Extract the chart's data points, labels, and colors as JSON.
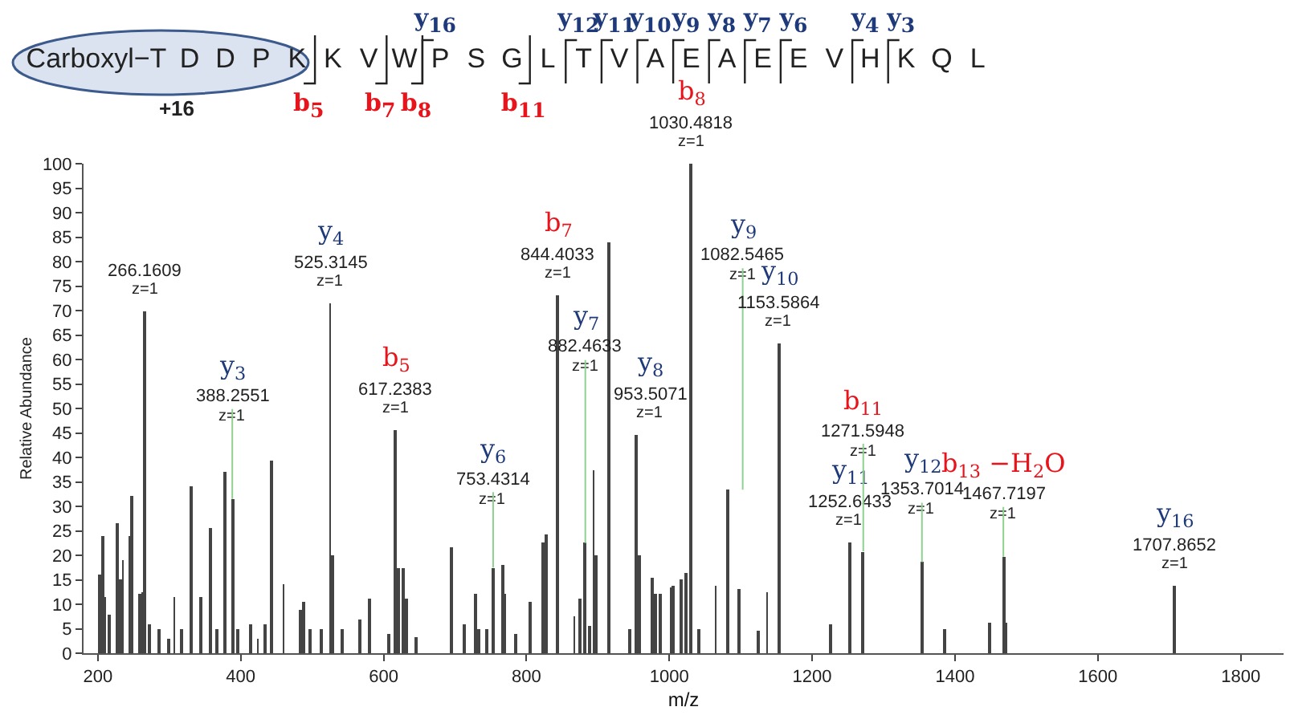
{
  "chart_data": {
    "type": "bar",
    "xlabel": "m/z",
    "ylabel": "Relative Abundance",
    "x": [
      202,
      206,
      209,
      216,
      228,
      232,
      235,
      244,
      247,
      259,
      262.5,
      266.1609,
      272,
      286,
      300,
      307,
      317,
      331,
      344,
      357,
      367,
      377,
      388.2551,
      395,
      414,
      424,
      435,
      443,
      460,
      483,
      489,
      497,
      512,
      525.3145,
      528.5,
      542,
      567,
      580,
      608,
      617.2383,
      620,
      627,
      632,
      645,
      696,
      713,
      729,
      733,
      745,
      753.4314,
      767,
      770,
      784,
      806,
      824,
      828,
      844.4033,
      867,
      874,
      882.4633,
      888,
      894,
      898,
      915,
      944,
      953.5071,
      958,
      976,
      981,
      987,
      1002,
      1006,
      1016,
      1023,
      1030.4818,
      1041,
      1065,
      1082.5465,
      1097,
      1124,
      1137,
      1153.5864,
      1225,
      1252.6433,
      1271.5948,
      1353.7014,
      1385,
      1449,
      1467.7197,
      1471,
      1707.8652
    ],
    "values": [
      16,
      24,
      11.5,
      8,
      26.5,
      15,
      19,
      23.8,
      32,
      12,
      12.5,
      70,
      6,
      5,
      3,
      11.5,
      5,
      34,
      11.5,
      25.5,
      5,
      37,
      31.5,
      5,
      6,
      3,
      6,
      39.5,
      14,
      8.8,
      10.5,
      5,
      5,
      71.5,
      20,
      5,
      7,
      11,
      4,
      45.5,
      17.5,
      17.5,
      11,
      3.3,
      21.5,
      6,
      12,
      5,
      5,
      17.5,
      18,
      12,
      4,
      10.5,
      22.5,
      24.3,
      73,
      7.7,
      11,
      22.5,
      5.7,
      37.5,
      20,
      84,
      5,
      44.5,
      20,
      15.5,
      12,
      12,
      13.4,
      13.7,
      15,
      16.4,
      100,
      5,
      13.7,
      33.4,
      13,
      4.6,
      12.6,
      63.3,
      6,
      22.5,
      20.8,
      18.6,
      5,
      6.2,
      19.7,
      6.2,
      13.7
    ],
    "color": "#444444",
    "xlim": [
      180,
      1860
    ],
    "xticks": [
      200,
      400,
      600,
      800,
      1000,
      1200,
      1400,
      1600,
      1800
    ],
    "ylim": [
      0,
      100
    ],
    "yticks": [
      0,
      5,
      10,
      15,
      20,
      25,
      30,
      35,
      40,
      45,
      50,
      55,
      60,
      65,
      70,
      75,
      80,
      85,
      90,
      95,
      100
    ],
    "annotations": [
      {
        "text": "266.1609",
        "x": 266.1609,
        "y": 70
      },
      {
        "text": "z=1",
        "x": 266.1609,
        "y": 70
      },
      {
        "text": "y$_{3}$",
        "x": 388.2551,
        "y": 31.5
      },
      {
        "text": "388.2551",
        "x": 388.2551,
        "y": 31.5
      },
      {
        "text": "z=1",
        "x": 388.2551,
        "y": 31.5
      },
      {
        "text": "y$_{4}$",
        "x": 525.3145,
        "y": 71.5
      },
      {
        "text": "525.3145",
        "x": 525.3145,
        "y": 71.5
      },
      {
        "text": "z=1",
        "x": 525.3145,
        "y": 71.5
      },
      {
        "text": "b$_{5}$",
        "x": 617.2383,
        "y": 45.5
      },
      {
        "text": "617.2383",
        "x": 617.2383,
        "y": 45.5
      },
      {
        "text": "z=1",
        "x": 617.2383,
        "y": 45.5
      },
      {
        "text": "y$_{6}$",
        "x": 753.4314,
        "y": 17.5
      },
      {
        "text": "753.4314",
        "x": 753.4314,
        "y": 17.5
      },
      {
        "text": "z=1",
        "x": 753.4314,
        "y": 17.5
      },
      {
        "text": "b$_{7}$",
        "x": 844.4033,
        "y": 73
      },
      {
        "text": "844.4033",
        "x": 844.4033,
        "y": 73
      },
      {
        "text": "z=1",
        "x": 844.4033,
        "y": 73
      },
      {
        "text": "y$_{7}$",
        "x": 882.4633,
        "y": 22.5
      },
      {
        "text": "882.4633",
        "x": 882.4633,
        "y": 22.5
      },
      {
        "text": "z=1",
        "x": 882.4633,
        "y": 22.5
      },
      {
        "text": "y$_{8}$",
        "x": 953.5071,
        "y": 44.5
      },
      {
        "text": "953.5071",
        "x": 953.5071,
        "y": 44.5
      },
      {
        "text": "z=1",
        "x": 953.5071,
        "y": 44.5
      },
      {
        "text": "b$_{8}$",
        "x": 1030.4818,
        "y": 100
      },
      {
        "text": "1030.4818",
        "x": 1030.4818,
        "y": 100
      },
      {
        "text": "z=1",
        "x": 1030.4818,
        "y": 100
      },
      {
        "text": "y$_{9}$",
        "x": 1082.5465,
        "y": 33.4
      },
      {
        "text": "1082.5465",
        "x": 1082.5465,
        "y": 33.4
      },
      {
        "text": "z=1",
        "x": 1082.5465,
        "y": 33.4
      },
      {
        "text": "y$_{10}$",
        "x": 1153.5864,
        "y": 63.3
      },
      {
        "text": "1153.5864",
        "x": 1153.5864,
        "y": 63.3
      },
      {
        "text": "z=1",
        "x": 1153.5864,
        "y": 63.3
      },
      {
        "text": "y$_{11}$",
        "x": 1252.6433,
        "y": 22.5
      },
      {
        "text": "1252.6433",
        "x": 1252.6433,
        "y": 22.5
      },
      {
        "text": "z=1",
        "x": 1252.6433,
        "y": 22.5
      },
      {
        "text": "b$_{11}$",
        "x": 1271.5948,
        "y": 20.8
      },
      {
        "text": "1271.5948",
        "x": 1271.5948,
        "y": 20.8
      },
      {
        "text": "z=1",
        "x": 1271.5948,
        "y": 20.8
      },
      {
        "text": "y$_{12}$",
        "x": 1353.7014,
        "y": 18.6
      },
      {
        "text": "1353.7014",
        "x": 1353.7014,
        "y": 18.6
      },
      {
        "text": "z=1",
        "x": 1353.7014,
        "y": 18.6
      },
      {
        "text": "b$_{13}$ −H$_{2}$O",
        "x": 1467.7197,
        "y": 19.7
      },
      {
        "text": "1467.7197",
        "x": 1467.7197,
        "y": 19.7
      },
      {
        "text": "z=1",
        "x": 1467.7197,
        "y": 19.7
      },
      {
        "text": "y$_{16}$",
        "x": 1707.8652,
        "y": 13.7
      },
      {
        "text": "1707.8652",
        "x": 1707.8652,
        "y": 13.7
      },
      {
        "text": "z=1",
        "x": 1707.8652,
        "y": 13.7
      },
      "Carboxyl−T D D P K K V W P S G L T V A E A E E V H K Q L",
      "+16",
      "y$_{16}$",
      "y$_{12}$",
      "y$_{11}$",
      "y$_{10}$",
      "y$_{9}$",
      "y$_{8}$",
      "y$_{7}$",
      "y$_{6}$",
      "y$_{4}$",
      "y$_{3}$",
      "b$_{5}$",
      "b$_{7}$",
      "b$_{8}$",
      "b$_{11}$"
    ]
  }
}
